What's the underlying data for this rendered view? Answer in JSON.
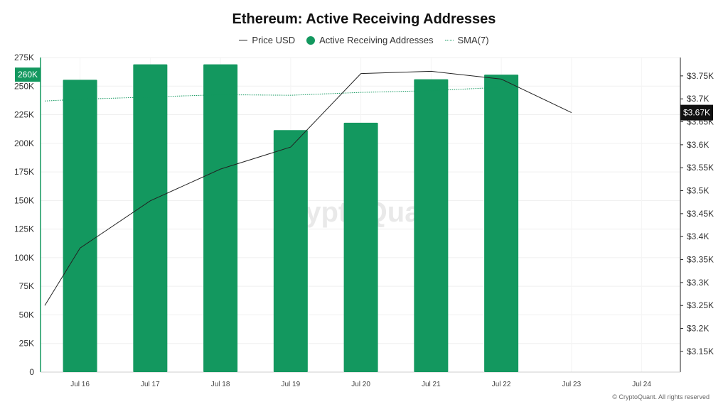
{
  "colors": {
    "bars": "#13985f",
    "price_line": "#222222",
    "sma_line": "#13985f",
    "axis_left": "#13985f"
  },
  "footer": "© CryptoQuant. All rights reserved",
  "watermark": "CryptoQuant",
  "chart_data": {
    "type": "bar",
    "title": "Ethereum: Active Receiving Addresses",
    "legend_position": "top-center",
    "grid": true,
    "categories": [
      "Jul 16",
      "Jul 17",
      "Jul 18",
      "Jul 19",
      "Jul 20",
      "Jul 21",
      "Jul 22",
      "Jul 23",
      "Jul 24"
    ],
    "series": [
      {
        "name": "Price USD",
        "type": "line",
        "axis": "right",
        "x": [
          "Jul 15",
          "Jul 16",
          "Jul 17",
          "Jul 18",
          "Jul 19",
          "Jul 20",
          "Jul 21",
          "Jul 22",
          "Jul 23"
        ],
        "values": [
          3250,
          3375,
          3478,
          3547,
          3595,
          3755,
          3760,
          3743,
          3670
        ]
      },
      {
        "name": "Active Receiving Addresses",
        "type": "bar",
        "axis": "left",
        "values": [
          255500,
          269000,
          269000,
          211500,
          218000,
          256000,
          260000,
          null,
          null
        ]
      },
      {
        "name": "SMA(7)",
        "type": "line",
        "style": "dotted",
        "axis": "left",
        "x": [
          "Jul 15",
          "Jul 16",
          "Jul 17",
          "Jul 18",
          "Jul 19",
          "Jul 20",
          "Jul 21",
          "Jul 22"
        ],
        "values": [
          237000,
          238500,
          240500,
          242500,
          242000,
          244500,
          246000,
          249000
        ]
      }
    ],
    "y_left": {
      "ylim": [
        0,
        275000
      ],
      "ticks": [
        0,
        25000,
        50000,
        75000,
        100000,
        125000,
        150000,
        175000,
        200000,
        225000,
        250000,
        275000
      ],
      "tick_labels": [
        "0",
        "25K",
        "50K",
        "75K",
        "100K",
        "125K",
        "150K",
        "175K",
        "200K",
        "225K",
        "250K",
        "275K"
      ]
    },
    "y_right": {
      "ylim": [
        3105,
        3790
      ],
      "ticks": [
        3150,
        3200,
        3250,
        3300,
        3350,
        3400,
        3450,
        3500,
        3550,
        3600,
        3650,
        3700,
        3750
      ],
      "tick_labels": [
        "$3.15K",
        "$3.2K",
        "$3.25K",
        "$3.3K",
        "$3.35K",
        "$3.4K",
        "$3.45K",
        "$3.5K",
        "$3.55K",
        "$3.6K",
        "$3.65K",
        "$3.7K",
        "$3.75K"
      ]
    },
    "current_value_labels": {
      "left": {
        "text": "260K",
        "value": 260000
      },
      "right": {
        "text": "$3.67K",
        "value": 3670
      }
    }
  }
}
